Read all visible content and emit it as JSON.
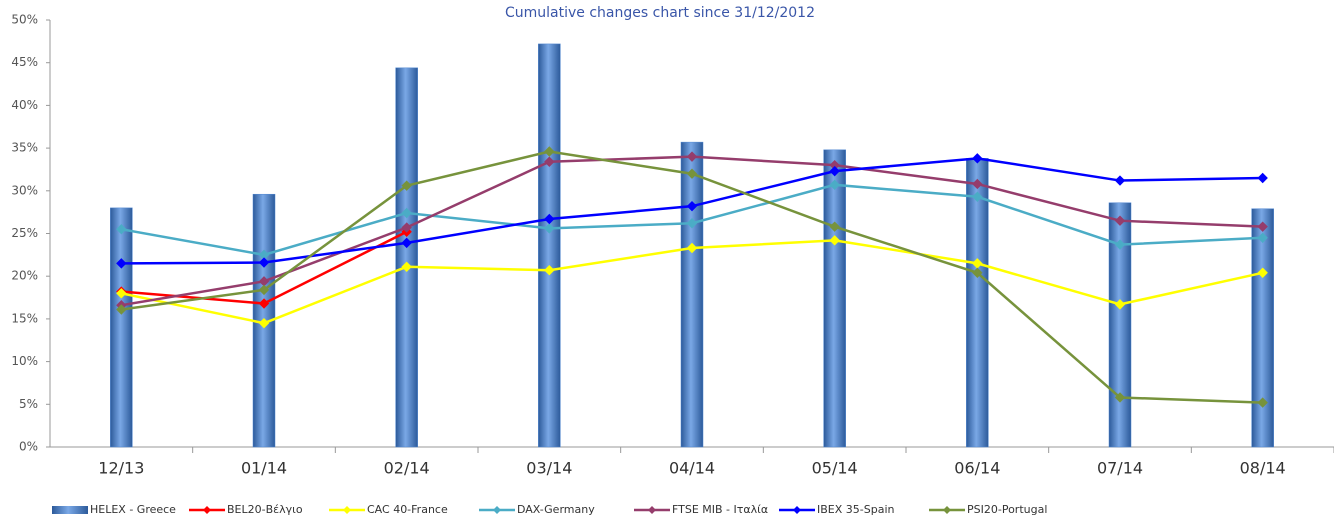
{
  "chart_data": {
    "type": "bar-line",
    "title": "Cumulative changes chart since 31/12/2012",
    "categories": [
      "12/13",
      "01/14",
      "02/14",
      "03/14",
      "04/14",
      "05/14",
      "06/14",
      "07/14",
      "08/14"
    ],
    "series": [
      {
        "name": "HELEX - Greece",
        "type": "bar",
        "color": "#4f86d0",
        "values": [
          28.0,
          29.6,
          44.4,
          47.2,
          35.7,
          34.8,
          33.8,
          28.6,
          27.9
        ]
      },
      {
        "name": "BEL20-Βέλγιο",
        "type": "line",
        "color": "#ff0000",
        "values": [
          18.2,
          16.8,
          25.2,
          null,
          null,
          null,
          null,
          null,
          null
        ]
      },
      {
        "name": "CAC 40-France",
        "type": "line",
        "color": "#ffff00",
        "values": [
          18.0,
          14.5,
          21.1,
          20.7,
          23.3,
          24.2,
          21.5,
          16.7,
          20.4
        ]
      },
      {
        "name": "DAX-Germany",
        "type": "line",
        "color": "#4bacc6",
        "values": [
          25.5,
          22.5,
          27.4,
          25.6,
          26.2,
          30.7,
          29.3,
          23.7,
          24.5
        ]
      },
      {
        "name": "FTSE MIB - Ιταλία",
        "type": "line",
        "color": "#953d6c",
        "values": [
          16.6,
          19.4,
          25.7,
          33.4,
          34.0,
          33.0,
          30.8,
          26.5,
          25.8
        ]
      },
      {
        "name": "IBEX 35-Spain",
        "type": "line",
        "color": "#0000ff",
        "values": [
          21.5,
          21.6,
          23.9,
          26.7,
          28.2,
          32.3,
          33.8,
          31.2,
          31.5
        ]
      },
      {
        "name": "PSI20-Portugal",
        "type": "line",
        "color": "#77933c",
        "values": [
          16.1,
          18.4,
          30.6,
          34.6,
          32.0,
          25.8,
          20.4,
          5.8,
          5.2
        ]
      }
    ],
    "ylim": [
      0,
      50
    ],
    "yticks": [
      {
        "value": 0,
        "label": "0%"
      },
      {
        "value": 5,
        "label": "5%"
      },
      {
        "value": 10,
        "label": "10%"
      },
      {
        "value": 15,
        "label": "15%"
      },
      {
        "value": 20,
        "label": "20%"
      },
      {
        "value": 25,
        "label": "25%"
      },
      {
        "value": 30,
        "label": "30%"
      },
      {
        "value": 35,
        "label": "35%"
      },
      {
        "value": 40,
        "label": "40%"
      },
      {
        "value": 45,
        "label": "45%"
      },
      {
        "value": 50,
        "label": "50%"
      }
    ],
    "grid": false,
    "legend": "bottom"
  }
}
